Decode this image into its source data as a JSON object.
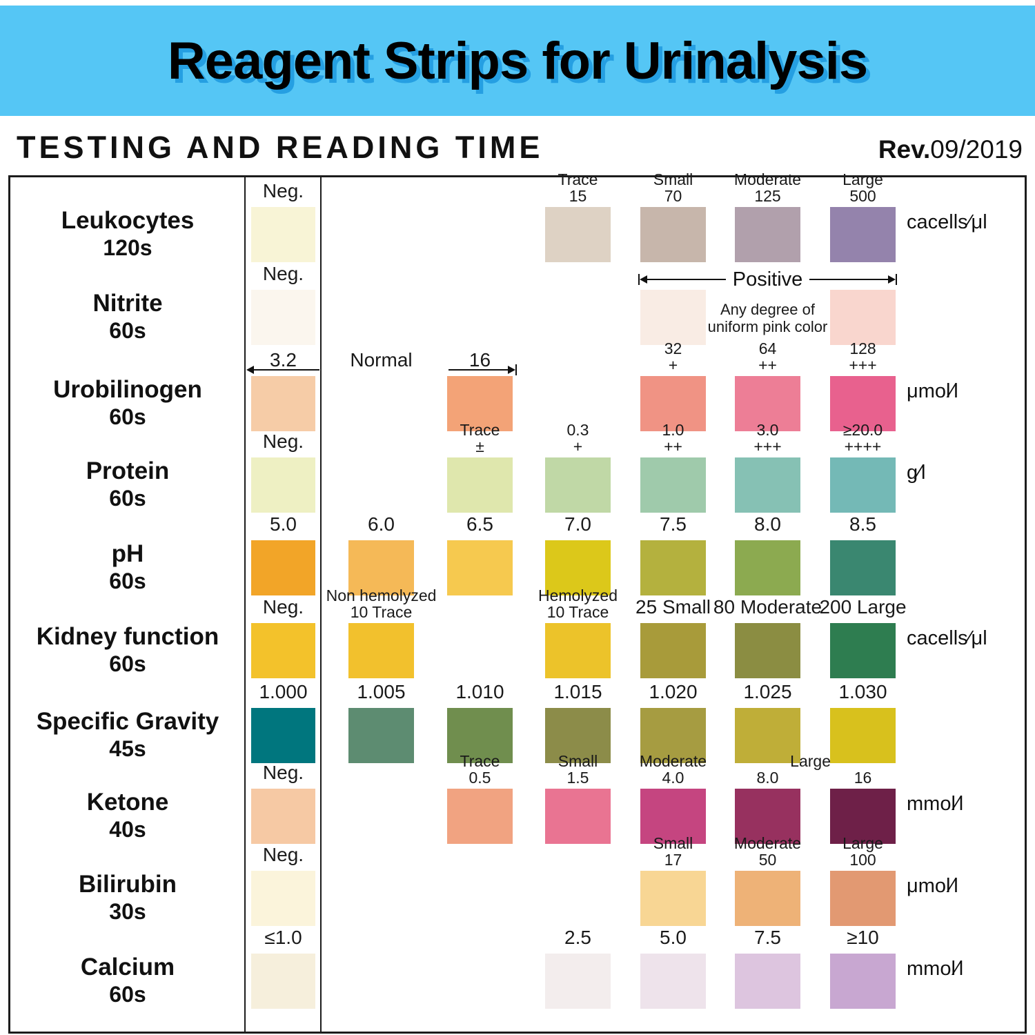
{
  "banner": {
    "title": "Reagent Strips for Urinalysis"
  },
  "header": {
    "heading": "TESTING AND READING TIME",
    "rev_label": "Rev.",
    "rev_value": "09/2019"
  },
  "colors": {
    "banner_bg": "#55c6f5",
    "banner_shadow": "#259fe2",
    "border": "#1c1c1c"
  },
  "rows": [
    {
      "name": "Leukocytes",
      "time": "120s",
      "unit": "cacells∕μl",
      "cells": [
        {
          "col": 0,
          "label": [
            "Neg."
          ],
          "color": "#f8f4d6"
        },
        {
          "col": 3,
          "label": [
            "Trace",
            "15"
          ],
          "color": "#ded2c4"
        },
        {
          "col": 4,
          "label": [
            "Small",
            "70"
          ],
          "color": "#c7b6ab"
        },
        {
          "col": 5,
          "label": [
            "Moderate",
            "125"
          ],
          "color": "#b1a0ac"
        },
        {
          "col": 6,
          "label": [
            "Large",
            "500"
          ],
          "color": "#9483ac"
        }
      ]
    },
    {
      "name": "Nitrite",
      "time": "60s",
      "unit": null,
      "positive_label": "Positive",
      "positive_note": [
        "Any degree of",
        "uniform pink color"
      ],
      "cells": [
        {
          "col": 0,
          "label": [
            "Neg."
          ],
          "color": "#fbf6ee"
        },
        {
          "col": 4,
          "color": "#f9ece4"
        },
        {
          "col": 6,
          "color": "#f9d6ce"
        }
      ]
    },
    {
      "name": "Urobilinogen",
      "time": "60s",
      "unit": "μmol∕l",
      "cells": [
        {
          "col": 0,
          "label": [
            "3.2"
          ],
          "arrow": "left",
          "color": "#f6cca7"
        },
        {
          "col": 1,
          "label": [
            "Normal"
          ]
        },
        {
          "col": 2,
          "label": [
            "16"
          ],
          "arrow": "right",
          "color": "#f3a377"
        },
        {
          "col": 4,
          "label": [
            "32",
            "+"
          ],
          "color": "#f09384"
        },
        {
          "col": 5,
          "label": [
            "64",
            "++"
          ],
          "color": "#ed7e96"
        },
        {
          "col": 6,
          "label": [
            "128",
            "+++"
          ],
          "color": "#e8618e"
        }
      ]
    },
    {
      "name": "Protein",
      "time": "60s",
      "unit": "g∕l",
      "cells": [
        {
          "col": 0,
          "label": [
            "Neg."
          ],
          "color": "#eef0c3"
        },
        {
          "col": 2,
          "label": [
            "Trace",
            "±"
          ],
          "color": "#dfe7ad"
        },
        {
          "col": 3,
          "label": [
            "0.3",
            "+"
          ],
          "color": "#c0d8a6"
        },
        {
          "col": 4,
          "label": [
            "1.0",
            "++"
          ],
          "color": "#9fcaab"
        },
        {
          "col": 5,
          "label": [
            "3.0",
            "+++"
          ],
          "color": "#86c1b4"
        },
        {
          "col": 6,
          "label": [
            "≥20.0",
            "++++"
          ],
          "color": "#74b9b6"
        }
      ]
    },
    {
      "name": "pH",
      "time": "60s",
      "unit": null,
      "cells": [
        {
          "col": 0,
          "label": [
            "5.0"
          ],
          "color": "#f2a528"
        },
        {
          "col": 1,
          "label": [
            "6.0"
          ],
          "color": "#f5b957"
        },
        {
          "col": 2,
          "label": [
            "6.5"
          ],
          "color": "#f6c94f"
        },
        {
          "col": 3,
          "label": [
            "7.0"
          ],
          "color": "#dcc81a"
        },
        {
          "col": 4,
          "label": [
            "7.5"
          ],
          "color": "#b4b13e"
        },
        {
          "col": 5,
          "label": [
            "8.0"
          ],
          "color": "#8caa50"
        },
        {
          "col": 6,
          "label": [
            "8.5"
          ],
          "color": "#3a8770"
        }
      ]
    },
    {
      "name": "Kidney function",
      "time": "60s",
      "unit": "cacells∕μl",
      "cells": [
        {
          "col": 0,
          "label": [
            "Neg."
          ],
          "color": "#f3c22b"
        },
        {
          "col": 1,
          "label": [
            "Non hemolyzed",
            "10 Trace"
          ],
          "color": "#f2c12d",
          "speckled": true
        },
        {
          "col": 3,
          "label": [
            "Hemolyzed",
            "10 Trace"
          ],
          "color": "#ecc32a"
        },
        {
          "col": 4,
          "label": [
            "25 Small"
          ],
          "color": "#a89b3a"
        },
        {
          "col": 5,
          "label": [
            "80 Moderate"
          ],
          "color": "#8b8d42"
        },
        {
          "col": 6,
          "label": [
            "200 Large"
          ],
          "color": "#2e7d50"
        }
      ]
    },
    {
      "name": "Specific Gravity",
      "time": "45s",
      "unit": null,
      "cells": [
        {
          "col": 0,
          "label": [
            "1.000"
          ],
          "color": "#00767e"
        },
        {
          "col": 1,
          "label": [
            "1.005"
          ],
          "color": "#5d8c71"
        },
        {
          "col": 2,
          "label": [
            "1.010"
          ],
          "color": "#708e4e"
        },
        {
          "col": 3,
          "label": [
            "1.015"
          ],
          "color": "#8c8c49"
        },
        {
          "col": 4,
          "label": [
            "1.020"
          ],
          "color": "#a69c41"
        },
        {
          "col": 5,
          "label": [
            "1.025"
          ],
          "color": "#bfae38"
        },
        {
          "col": 6,
          "label": [
            "1.030"
          ],
          "color": "#d8c11d"
        }
      ]
    },
    {
      "name": "Ketone",
      "time": "40s",
      "unit": "mmol∕l",
      "cells": [
        {
          "col": 0,
          "label": [
            "Neg."
          ],
          "color": "#f6c9a4"
        },
        {
          "col": 2,
          "label": [
            "Trace",
            "0.5"
          ],
          "color": "#f1a381"
        },
        {
          "col": 3,
          "label": [
            "Small",
            "1.5"
          ],
          "color": "#e97492"
        },
        {
          "col": 4,
          "label": [
            "Moderate",
            "4.0"
          ],
          "color": "#c54580"
        },
        {
          "col": 5,
          "label": [
            "",
            "8.0"
          ],
          "color": "#97315f"
        },
        {
          "col": 5.45,
          "label": [
            "Large",
            ""
          ]
        },
        {
          "col": 6,
          "label": [
            "",
            "16"
          ],
          "color": "#6e2048"
        }
      ]
    },
    {
      "name": "Bilirubin",
      "time": "30s",
      "unit": "μmol∕l",
      "cells": [
        {
          "col": 0,
          "label": [
            "Neg."
          ],
          "color": "#fbf4db"
        },
        {
          "col": 4,
          "label": [
            "Small",
            "17"
          ],
          "color": "#f8d694"
        },
        {
          "col": 5,
          "label": [
            "Moderate",
            "50"
          ],
          "color": "#eeb277"
        },
        {
          "col": 6,
          "label": [
            "Large",
            "100"
          ],
          "color": "#e29972"
        }
      ]
    },
    {
      "name": "Calcium",
      "time": "60s",
      "unit": "mmol∕l",
      "cells": [
        {
          "col": 0,
          "label": [
            "≤1.0"
          ],
          "color": "#f6efdc"
        },
        {
          "col": 3,
          "label": [
            "2.5"
          ],
          "color": "#f3eded"
        },
        {
          "col": 4,
          "label": [
            "5.0"
          ],
          "color": "#eee3eb"
        },
        {
          "col": 5,
          "label": [
            "7.5"
          ],
          "color": "#ddc5df"
        },
        {
          "col": 6,
          "label": [
            "≥10"
          ],
          "color": "#c8a7d1"
        }
      ]
    }
  ]
}
